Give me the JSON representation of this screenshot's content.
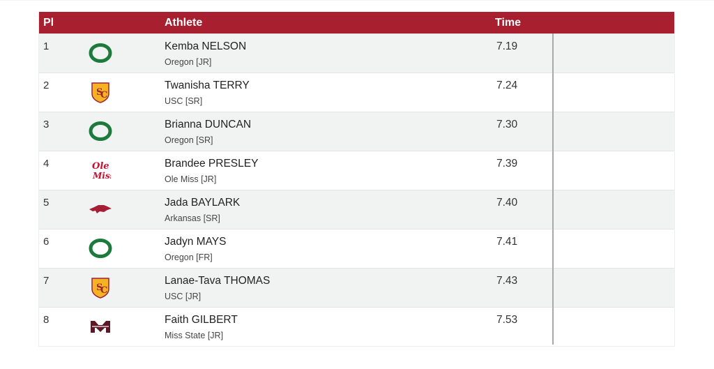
{
  "table": {
    "headers": {
      "place": "Pl",
      "athlete": "Athlete",
      "time": "Time"
    },
    "colors": {
      "header_bg": "#a8202f",
      "row_alt": "#f1f2f2",
      "oregon_green": "#1b7a3c",
      "usc_gold": "#f5b323",
      "usc_red": "#9d2235",
      "olemiss_red": "#c8102e",
      "arkansas_red": "#a51e36",
      "missstate_maroon": "#5d1725"
    },
    "rows": [
      {
        "place": "1",
        "name": "Kemba NELSON",
        "school": "Oregon [JR]",
        "time": "7.19",
        "logo": "oregon-logo-icon"
      },
      {
        "place": "2",
        "name": "Twanisha TERRY",
        "school": "USC [SR]",
        "time": "7.24",
        "logo": "usc-logo-icon"
      },
      {
        "place": "3",
        "name": "Brianna DUNCAN",
        "school": "Oregon [SR]",
        "time": "7.30",
        "logo": "oregon-logo-icon"
      },
      {
        "place": "4",
        "name": "Brandee PRESLEY",
        "school": "Ole Miss [JR]",
        "time": "7.39",
        "logo": "ole-miss-logo-icon"
      },
      {
        "place": "5",
        "name": "Jada BAYLARK",
        "school": "Arkansas [SR]",
        "time": "7.40",
        "logo": "arkansas-logo-icon"
      },
      {
        "place": "6",
        "name": "Jadyn MAYS",
        "school": "Oregon [FR]",
        "time": "7.41",
        "logo": "oregon-logo-icon"
      },
      {
        "place": "7",
        "name": "Lanae-Tava THOMAS",
        "school": "USC [JR]",
        "time": "7.43",
        "logo": "usc-logo-icon"
      },
      {
        "place": "8",
        "name": "Faith GILBERT",
        "school": "Miss State [JR]",
        "time": "7.53",
        "logo": "miss-state-logo-icon"
      }
    ]
  }
}
